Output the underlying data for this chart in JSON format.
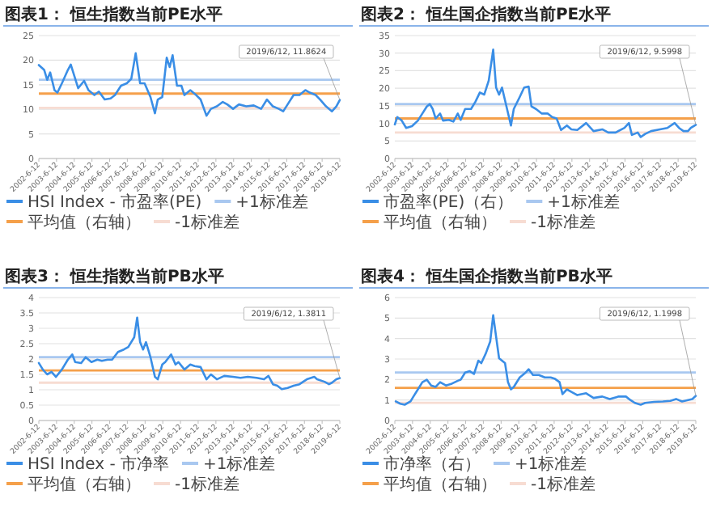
{
  "chart_data": [
    {
      "type": "line",
      "title": "图表1：  恒生指数当前PE水平",
      "grid": "y",
      "legend": "bottom",
      "xlim": [
        "2002-06-12",
        "2019-06-12"
      ],
      "xticks": [
        {
          "value": "2002-06-12",
          "label": "2002-6-12"
        },
        {
          "value": "2003-06-12",
          "label": "2003-6-12"
        },
        {
          "value": "2004-06-12",
          "label": "2004-6-12"
        },
        {
          "value": "2005-06-12",
          "label": "2005-6-12"
        },
        {
          "value": "2006-06-12",
          "label": "2006-6-12"
        },
        {
          "value": "2007-06-12",
          "label": "2007-6-12"
        },
        {
          "value": "2008-06-12",
          "label": "2008-6-12"
        },
        {
          "value": "2009-06-12",
          "label": "2009-6-12"
        },
        {
          "value": "2010-06-12",
          "label": "2010-6-12"
        },
        {
          "value": "2011-06-12",
          "label": "2011-6-12"
        },
        {
          "value": "2012-06-12",
          "label": "2012-6-12"
        },
        {
          "value": "2013-06-12",
          "label": "2013-6-12"
        },
        {
          "value": "2014-06-12",
          "label": "2014-6-12"
        },
        {
          "value": "2015-06-12",
          "label": "2015-6-12"
        },
        {
          "value": "2016-06-12",
          "label": "2016-6-12"
        },
        {
          "value": "2017-06-12",
          "label": "2017-6-12"
        },
        {
          "value": "2018-06-12",
          "label": "2018-6-12"
        },
        {
          "value": "2019-06-12",
          "label": "2019-6-12"
        }
      ],
      "ylim": [
        0,
        25
      ],
      "yticks": [
        0,
        5,
        10,
        15,
        20,
        25
      ],
      "series": [
        {
          "name": "HSI Index - 市盈率(PE)",
          "color": "#3a8ee6",
          "x": [
            "2002-06-12",
            "2002-10",
            "2002-12",
            "2003-02",
            "2003-05",
            "2003-07",
            "2003-10",
            "2004-02",
            "2004-04",
            "2004-09",
            "2005-01",
            "2005-04",
            "2005-08",
            "2005-11",
            "2006-03",
            "2006-07",
            "2006-10",
            "2007-02",
            "2007-06",
            "2007-09",
            "2007-12",
            "2008-03",
            "2008-06",
            "2008-10",
            "2009-01",
            "2009-03",
            "2009-06",
            "2009-09",
            "2009-11",
            "2010-01",
            "2010-04",
            "2010-07",
            "2010-09",
            "2011-01",
            "2011-05",
            "2011-08",
            "2011-12",
            "2012-03",
            "2012-07",
            "2012-11",
            "2013-02",
            "2013-06",
            "2013-10",
            "2014-03",
            "2014-08",
            "2015-01",
            "2015-05",
            "2015-09",
            "2016-01",
            "2016-04",
            "2016-08",
            "2016-11",
            "2017-03",
            "2017-07",
            "2017-10",
            "2018-02",
            "2018-05",
            "2018-09",
            "2019-01",
            "2019-04",
            "2019-06-12"
          ],
          "values": [
            19,
            18,
            16,
            17.5,
            13.9,
            13.4,
            15.3,
            18,
            19.1,
            14.3,
            15.8,
            13.9,
            12.9,
            13.6,
            12,
            12.2,
            12.9,
            14.8,
            15.3,
            16.2,
            21.4,
            15.3,
            15.3,
            12.5,
            9.2,
            12,
            12.5,
            20.5,
            18.6,
            21,
            14.8,
            14.8,
            12.9,
            13.9,
            12.9,
            12,
            8.7,
            10.1,
            10.6,
            11.5,
            11,
            10.1,
            11,
            10.6,
            10.8,
            10.1,
            12,
            10.6,
            10.1,
            9.6,
            11.5,
            12.9,
            12.9,
            13.9,
            13.4,
            12.9,
            12,
            10.6,
            9.6,
            10.6,
            11.9
          ]
        }
      ],
      "ref_lines": [
        {
          "axis": "y",
          "value": 16.0,
          "label": "+1标准差",
          "color": "#a9c8f0"
        },
        {
          "axis": "y",
          "value": 13.2,
          "label": "平均值（右轴）",
          "color": "#f5a04a"
        },
        {
          "axis": "y",
          "value": 10.3,
          "label": "-1标准差",
          "color": "#f7dcd2"
        }
      ],
      "annotations": [
        {
          "text": "2019/6/12, 11.8624",
          "x": "2019-06-12",
          "y": 11.9
        }
      ]
    },
    {
      "type": "line",
      "title": "图表2：  恒生国企指数当前PE水平",
      "grid": "y",
      "legend": "bottom",
      "xlim": [
        "2002-06-12",
        "2019-06-12"
      ],
      "xticks": [
        {
          "value": "2002-06-12",
          "label": "2002-6-12"
        },
        {
          "value": "2003-06-12",
          "label": "2003-6-12"
        },
        {
          "value": "2004-06-12",
          "label": "2004-6-12"
        },
        {
          "value": "2005-06-12",
          "label": "2005-6-12"
        },
        {
          "value": "2006-06-12",
          "label": "2006-6-12"
        },
        {
          "value": "2007-06-12",
          "label": "2007-6-12"
        },
        {
          "value": "2008-06-12",
          "label": "2008-6-12"
        },
        {
          "value": "2009-06-12",
          "label": "2009-6-12"
        },
        {
          "value": "2010-06-12",
          "label": "2010-6-12"
        },
        {
          "value": "2011-06-12",
          "label": "2011-6-12"
        },
        {
          "value": "2012-06-12",
          "label": "2012-6-12"
        },
        {
          "value": "2013-06-12",
          "label": "2013-6-12"
        },
        {
          "value": "2014-06-12",
          "label": "2014-6-12"
        },
        {
          "value": "2015-06-12",
          "label": "2015-6-12"
        },
        {
          "value": "2016-06-12",
          "label": "2016-6-12"
        },
        {
          "value": "2017-06-12",
          "label": "2017-6-12"
        },
        {
          "value": "2018-06-12",
          "label": "2018-6-12"
        },
        {
          "value": "2019-06-12",
          "label": "2019-6-12"
        }
      ],
      "ylim": [
        0,
        35
      ],
      "yticks": [
        0,
        5,
        10,
        15,
        20,
        25,
        30,
        35
      ],
      "series": [
        {
          "name": "市盈率(PE)（右）",
          "color": "#3a8ee6",
          "x": [
            "2002-06-12",
            "2002-08",
            "2002-11",
            "2003-02",
            "2003-06",
            "2003-10",
            "2004-01",
            "2004-04",
            "2004-06",
            "2004-08",
            "2004-10",
            "2005-01",
            "2005-03",
            "2005-07",
            "2005-10",
            "2006-01",
            "2006-03",
            "2006-06",
            "2006-10",
            "2007-01",
            "2007-04",
            "2007-07",
            "2007-10",
            "2008-01",
            "2008-03",
            "2008-05",
            "2008-07",
            "2008-10",
            "2009-01",
            "2009-03",
            "2009-07",
            "2009-10",
            "2010-01",
            "2010-03",
            "2010-06",
            "2010-10",
            "2011-02",
            "2011-05",
            "2011-08",
            "2011-11",
            "2012-03",
            "2012-06",
            "2012-10",
            "2013-04",
            "2013-09",
            "2014-03",
            "2014-07",
            "2014-12",
            "2015-06",
            "2015-09",
            "2015-11",
            "2016-03",
            "2016-05",
            "2016-08",
            "2016-12",
            "2017-06",
            "2017-11",
            "2018-04",
            "2018-07",
            "2018-10",
            "2019-01",
            "2019-03",
            "2019-06-12"
          ],
          "values": [
            9.7,
            11.8,
            10.8,
            8.7,
            9.2,
            10.8,
            12.8,
            14.8,
            15.5,
            14.1,
            11.4,
            12.8,
            10.8,
            11,
            10.5,
            12.8,
            11,
            14.1,
            14.1,
            16.2,
            18.8,
            18.2,
            22.2,
            31,
            20.2,
            18.2,
            20.2,
            14.8,
            9.4,
            14.1,
            17.5,
            20.2,
            20.5,
            14.8,
            14.1,
            12.8,
            12.8,
            11.8,
            11.4,
            8.1,
            9.4,
            8.3,
            8.1,
            10.1,
            7.8,
            8.3,
            7.4,
            7.4,
            8.7,
            10.1,
            6.7,
            7.4,
            6.1,
            7,
            7.8,
            8.3,
            8.7,
            10.1,
            8.7,
            7.8,
            7.8,
            8.7,
            9.6
          ]
        }
      ],
      "ref_lines": [
        {
          "axis": "y",
          "value": 15.5,
          "label": "+1标准差",
          "color": "#a9c8f0"
        },
        {
          "axis": "y",
          "value": 11.4,
          "label": "平均值（右轴）",
          "color": "#f5a04a"
        },
        {
          "axis": "y",
          "value": 7.4,
          "label": "-1标准差",
          "color": "#f7dcd2"
        }
      ],
      "annotations": [
        {
          "text": "2019/6/12, 9.5998",
          "x": "2019-06-12",
          "y": 9.6
        }
      ]
    },
    {
      "type": "line",
      "title": "图表3：  恒生指数当前PB水平",
      "grid": "y",
      "legend": "bottom",
      "xlim": [
        "2002-06-12",
        "2019-06-12"
      ],
      "xticks": [
        {
          "value": "2002-06-12",
          "label": "2002-6-12"
        },
        {
          "value": "2003-06-12",
          "label": "2003-6-12"
        },
        {
          "value": "2004-06-12",
          "label": "2004-6-12"
        },
        {
          "value": "2005-06-12",
          "label": "2005-6-12"
        },
        {
          "value": "2006-06-12",
          "label": "2006-6-12"
        },
        {
          "value": "2007-06-12",
          "label": "2007-6-12"
        },
        {
          "value": "2008-06-12",
          "label": "2008-6-12"
        },
        {
          "value": "2009-06-12",
          "label": "2009-6-12"
        },
        {
          "value": "2010-06-12",
          "label": "2010-6-12"
        },
        {
          "value": "2011-06-12",
          "label": "2011-6-12"
        },
        {
          "value": "2012-06-12",
          "label": "2012-6-12"
        },
        {
          "value": "2013-06-12",
          "label": "2013-6-12"
        },
        {
          "value": "2014-06-12",
          "label": "2014-6-12"
        },
        {
          "value": "2015-06-12",
          "label": "2015-6-12"
        },
        {
          "value": "2016-06-12",
          "label": "2016-6-12"
        },
        {
          "value": "2017-06-12",
          "label": "2017-6-12"
        },
        {
          "value": "2018-06-12",
          "label": "2018-6-12"
        },
        {
          "value": "2019-06-12",
          "label": "2019-6-12"
        }
      ],
      "ylim": [
        0,
        4
      ],
      "yticks": [
        0,
        0.5,
        1,
        1.5,
        2,
        2.5,
        3,
        3.5,
        4
      ],
      "series": [
        {
          "name": "HSI Index - 市净率",
          "color": "#3a8ee6",
          "x": [
            "2002-06-12",
            "2002-09",
            "2002-12",
            "2003-03",
            "2003-06",
            "2003-10",
            "2004-02",
            "2004-05",
            "2004-07",
            "2004-11",
            "2005-02",
            "2005-06",
            "2005-10",
            "2006-01",
            "2006-05",
            "2006-08",
            "2006-12",
            "2007-04",
            "2007-07",
            "2007-11",
            "2008-01",
            "2008-03",
            "2008-05",
            "2008-07",
            "2008-10",
            "2009-01",
            "2009-03",
            "2009-06",
            "2009-08",
            "2009-12",
            "2010-03",
            "2010-05",
            "2010-09",
            "2011-01",
            "2011-04",
            "2011-08",
            "2011-12",
            "2012-03",
            "2012-07",
            "2012-12",
            "2013-06",
            "2013-11",
            "2014-04",
            "2014-10",
            "2015-03",
            "2015-06",
            "2015-09",
            "2015-12",
            "2016-03",
            "2016-07",
            "2016-11",
            "2017-03",
            "2017-08",
            "2018-01",
            "2018-03",
            "2018-08",
            "2018-11",
            "2019-01",
            "2019-04",
            "2019-06-12"
          ],
          "values": [
            1.87,
            1.66,
            1.5,
            1.58,
            1.42,
            1.66,
            1.98,
            2.15,
            1.9,
            1.87,
            2.06,
            1.9,
            1.98,
            1.94,
            1.98,
            1.98,
            2.23,
            2.31,
            2.39,
            2.71,
            3.35,
            2.55,
            2.31,
            2.55,
            2.06,
            1.42,
            1.34,
            1.82,
            1.9,
            2.15,
            1.82,
            1.9,
            1.66,
            1.82,
            1.77,
            1.74,
            1.34,
            1.5,
            1.34,
            1.45,
            1.42,
            1.39,
            1.42,
            1.39,
            1.34,
            1.45,
            1.18,
            1.13,
            1.02,
            1.06,
            1.13,
            1.18,
            1.34,
            1.42,
            1.34,
            1.26,
            1.18,
            1.23,
            1.34,
            1.38
          ]
        }
      ],
      "ref_lines": [
        {
          "axis": "y",
          "value": 2.06,
          "label": "+1标准差",
          "color": "#a9c8f0"
        },
        {
          "axis": "y",
          "value": 1.63,
          "label": "平均值（右轴）",
          "color": "#f5a04a"
        },
        {
          "axis": "y",
          "value": 1.23,
          "label": "-1标准差",
          "color": "#f7dcd2"
        }
      ],
      "annotations": [
        {
          "text": "2019/6/12, 1.3811",
          "x": "2019-06-12",
          "y": 1.38
        }
      ]
    },
    {
      "type": "line",
      "title": "图表4：  恒生国企指数当前PB水平",
      "grid": "y",
      "legend": "bottom",
      "xlim": [
        "2002-06-12",
        "2019-06-12"
      ],
      "xticks": [
        {
          "value": "2002-06-12",
          "label": "2002-6-12"
        },
        {
          "value": "2003-06-12",
          "label": "2003-6-12"
        },
        {
          "value": "2004-06-12",
          "label": "2004-6-12"
        },
        {
          "value": "2005-06-12",
          "label": "2005-6-12"
        },
        {
          "value": "2006-06-12",
          "label": "2006-6-12"
        },
        {
          "value": "2007-06-12",
          "label": "2007-6-12"
        },
        {
          "value": "2008-06-12",
          "label": "2008-6-12"
        },
        {
          "value": "2009-06-12",
          "label": "2009-6-12"
        },
        {
          "value": "2010-06-12",
          "label": "2010-6-12"
        },
        {
          "value": "2011-06-12",
          "label": "2011-6-12"
        },
        {
          "value": "2012-06-12",
          "label": "2012-6-12"
        },
        {
          "value": "2013-06-12",
          "label": "2013-6-12"
        },
        {
          "value": "2014-06-12",
          "label": "2014-6-12"
        },
        {
          "value": "2015-06-12",
          "label": "2015-6-12"
        },
        {
          "value": "2016-06-12",
          "label": "2016-6-12"
        },
        {
          "value": "2017-06-12",
          "label": "2017-6-12"
        },
        {
          "value": "2018-06-12",
          "label": "2018-6-12"
        },
        {
          "value": "2019-06-12",
          "label": "2019-6-12"
        }
      ],
      "ylim": [
        0,
        6
      ],
      "yticks": [
        0,
        1,
        2,
        3,
        4,
        5,
        6
      ],
      "series": [
        {
          "name": "市净率（右）",
          "color": "#3a8ee6",
          "x": [
            "2002-07",
            "2002-10",
            "2003-01",
            "2003-05",
            "2003-07",
            "2003-10",
            "2004-01",
            "2004-04",
            "2004-07",
            "2004-10",
            "2005-01",
            "2005-05",
            "2005-09",
            "2006-01",
            "2006-03",
            "2006-06",
            "2006-09",
            "2006-12",
            "2007-03",
            "2007-05",
            "2007-08",
            "2007-11",
            "2008-01",
            "2008-03",
            "2008-05",
            "2008-07",
            "2008-09",
            "2008-11",
            "2009-01",
            "2009-03",
            "2009-07",
            "2009-11",
            "2010-01",
            "2010-04",
            "2010-08",
            "2010-12",
            "2011-04",
            "2011-07",
            "2011-10",
            "2011-12",
            "2012-03",
            "2012-06",
            "2012-10",
            "2013-04",
            "2013-09",
            "2014-03",
            "2014-08",
            "2015-02",
            "2015-07",
            "2015-10",
            "2016-01",
            "2016-05",
            "2016-08",
            "2017-02",
            "2017-08",
            "2018-01",
            "2018-05",
            "2018-09",
            "2019-01",
            "2019-04",
            "2019-06-12"
          ],
          "values": [
            0.93,
            0.82,
            0.77,
            0.93,
            1.17,
            1.52,
            1.87,
            1.99,
            1.71,
            1.64,
            1.87,
            1.71,
            1.8,
            1.94,
            1.99,
            2.34,
            2.41,
            2.27,
            2.92,
            2.8,
            3.27,
            3.86,
            5.14,
            4.09,
            3.04,
            2.92,
            2.8,
            1.87,
            1.52,
            1.64,
            2.1,
            2.34,
            2.5,
            2.22,
            2.22,
            2.1,
            2.1,
            2.03,
            1.87,
            1.29,
            1.52,
            1.4,
            1.24,
            1.33,
            1.1,
            1.17,
            1.05,
            1.17,
            1.17,
            1.0,
            0.86,
            0.77,
            0.86,
            0.91,
            0.93,
            0.96,
            1.05,
            0.93,
            1.0,
            1.05,
            1.2
          ]
        }
      ],
      "ref_lines": [
        {
          "axis": "y",
          "value": 2.34,
          "label": "+1标准差",
          "color": "#a9c8f0"
        },
        {
          "axis": "y",
          "value": 1.59,
          "label": "平均值（右轴）",
          "color": "#f5a04a"
        },
        {
          "axis": "y",
          "value": 0.86,
          "label": "-1标准差",
          "color": "#f7dcd2"
        }
      ],
      "annotations": [
        {
          "text": "2019/6/12, 1.1998",
          "x": "2019-06-12",
          "y": 1.2
        }
      ]
    }
  ]
}
